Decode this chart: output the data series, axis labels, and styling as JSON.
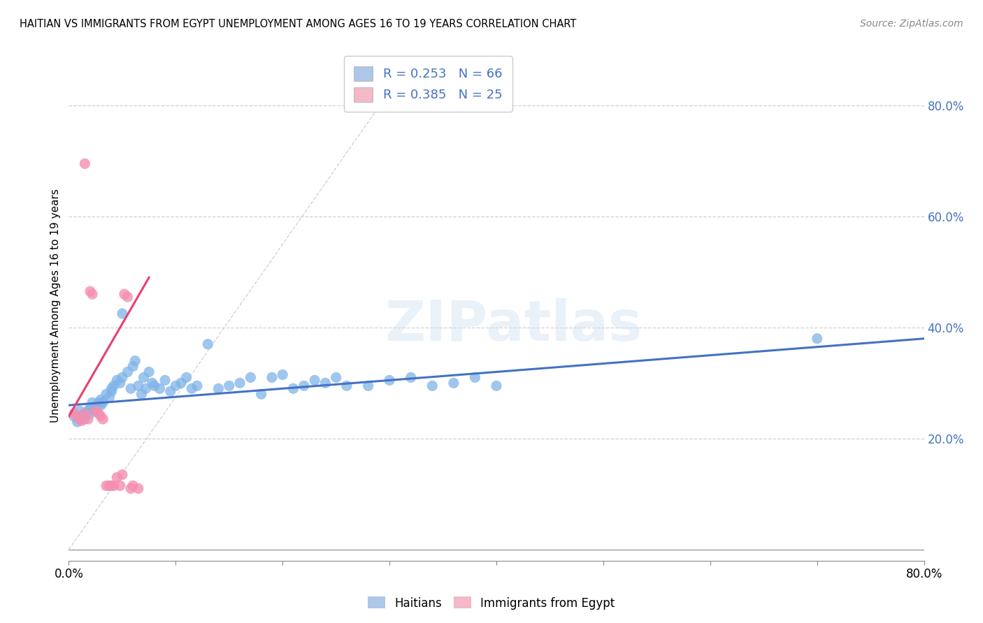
{
  "title": "HAITIAN VS IMMIGRANTS FROM EGYPT UNEMPLOYMENT AMONG AGES 16 TO 19 YEARS CORRELATION CHART",
  "source": "Source: ZipAtlas.com",
  "ylabel": "Unemployment Among Ages 16 to 19 years",
  "xlim": [
    0.0,
    0.8
  ],
  "ylim": [
    -0.02,
    0.9
  ],
  "y_ticks_right": [
    0.2,
    0.4,
    0.6,
    0.8
  ],
  "y_tick_labels_right": [
    "20.0%",
    "40.0%",
    "60.0%",
    "80.0%"
  ],
  "watermark": "ZIPatlas",
  "legend_row1": "R = 0.253   N = 66",
  "legend_row2": "R = 0.385   N = 25",
  "legend_labels_bottom": [
    "Haitians",
    "Immigrants from Egypt"
  ],
  "series1_color": "#7fb3e8",
  "series2_color": "#f48fb1",
  "trendline1_color": "#4472c4",
  "trendline2_color": "#e84070",
  "trendline_dash_color": "#c8c8c8",
  "background_color": "#ffffff",
  "grid_color": "#d0d0d0",
  "haitians_x": [
    0.005,
    0.008,
    0.01,
    0.012,
    0.015,
    0.015,
    0.018,
    0.02,
    0.02,
    0.022,
    0.025,
    0.025,
    0.028,
    0.03,
    0.03,
    0.032,
    0.035,
    0.038,
    0.04,
    0.04,
    0.042,
    0.045,
    0.048,
    0.05,
    0.05,
    0.055,
    0.058,
    0.06,
    0.062,
    0.065,
    0.068,
    0.07,
    0.072,
    0.075,
    0.078,
    0.08,
    0.085,
    0.09,
    0.095,
    0.1,
    0.105,
    0.11,
    0.115,
    0.12,
    0.13,
    0.14,
    0.15,
    0.16,
    0.17,
    0.18,
    0.19,
    0.2,
    0.21,
    0.22,
    0.23,
    0.24,
    0.25,
    0.26,
    0.28,
    0.3,
    0.32,
    0.34,
    0.36,
    0.38,
    0.4,
    0.7
  ],
  "haitians_y": [
    0.24,
    0.23,
    0.25,
    0.24,
    0.245,
    0.235,
    0.25,
    0.255,
    0.245,
    0.265,
    0.255,
    0.25,
    0.265,
    0.27,
    0.26,
    0.265,
    0.28,
    0.275,
    0.29,
    0.285,
    0.295,
    0.305,
    0.3,
    0.31,
    0.425,
    0.32,
    0.29,
    0.33,
    0.34,
    0.295,
    0.28,
    0.31,
    0.29,
    0.32,
    0.3,
    0.295,
    0.29,
    0.305,
    0.285,
    0.295,
    0.3,
    0.31,
    0.29,
    0.295,
    0.37,
    0.29,
    0.295,
    0.3,
    0.31,
    0.28,
    0.31,
    0.315,
    0.29,
    0.295,
    0.305,
    0.3,
    0.31,
    0.295,
    0.295,
    0.305,
    0.31,
    0.295,
    0.3,
    0.31,
    0.295,
    0.38
  ],
  "egypt_x": [
    0.005,
    0.008,
    0.01,
    0.012,
    0.015,
    0.015,
    0.018,
    0.02,
    0.022,
    0.025,
    0.028,
    0.03,
    0.032,
    0.035,
    0.038,
    0.04,
    0.042,
    0.045,
    0.048,
    0.05,
    0.052,
    0.055,
    0.058,
    0.06,
    0.065
  ],
  "egypt_y": [
    0.245,
    0.24,
    0.235,
    0.232,
    0.695,
    0.245,
    0.235,
    0.465,
    0.46,
    0.25,
    0.245,
    0.24,
    0.235,
    0.115,
    0.115,
    0.115,
    0.115,
    0.13,
    0.115,
    0.135,
    0.46,
    0.455,
    0.11,
    0.115,
    0.11
  ],
  "trendline1_x0": 0.0,
  "trendline1_y0": 0.26,
  "trendline1_x1": 0.8,
  "trendline1_y1": 0.38,
  "trendline2_x0": 0.0,
  "trendline2_y0": 0.24,
  "trendline2_x1": 0.075,
  "trendline2_y1": 0.49,
  "trendline_dash_x0": 0.0,
  "trendline_dash_y0": 0.0,
  "trendline_dash_x1": 0.32,
  "trendline_dash_y1": 0.88
}
